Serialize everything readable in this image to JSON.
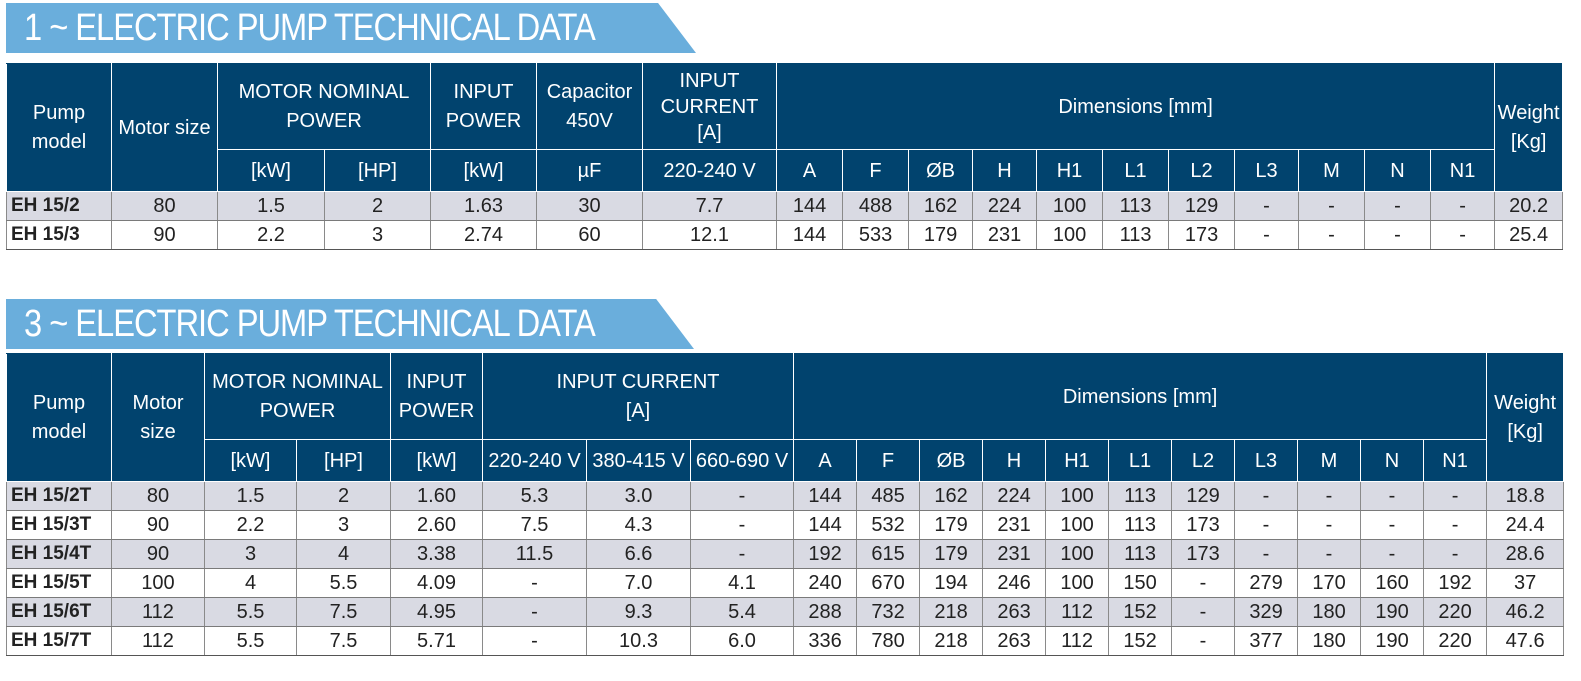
{
  "single_phase": {
    "banner": "1 ~ ELECTRIC PUMP TECHNICAL DATA",
    "headers": {
      "pump_model": "Pump\nmodel",
      "motor_size": "Motor size",
      "motor_power": "MOTOR NOMINAL\nPOWER",
      "input_power": "INPUT\nPOWER",
      "capacitor": "Capacitor\n450V",
      "input_current": "INPUT\nCURRENT\n[A]",
      "dimensions": "Dimensions [mm]",
      "weight": "Weight\n[Kg]",
      "sub": [
        "[kW]",
        "[HP]",
        "[kW]",
        "µF",
        "220-240 V",
        "A",
        "F",
        "ØB",
        "H",
        "H1",
        "L1",
        "L2",
        "L3",
        "M",
        "N",
        "N1"
      ]
    },
    "rows": [
      [
        "EH 15/2",
        "80",
        "1.5",
        "2",
        "1.63",
        "30",
        "7.7",
        "144",
        "488",
        "162",
        "224",
        "100",
        "113",
        "129",
        "-",
        "-",
        "-",
        "-",
        "20.2"
      ],
      [
        "EH 15/3",
        "90",
        "2.2",
        "3",
        "2.74",
        "60",
        "12.1",
        "144",
        "533",
        "179",
        "231",
        "100",
        "113",
        "173",
        "-",
        "-",
        "-",
        "-",
        "25.4"
      ]
    ]
  },
  "three_phase": {
    "banner": "3 ~ ELECTRIC PUMP TECHNICAL DATA",
    "headers": {
      "pump_model": "Pump\nmodel",
      "motor_size": "Motor\nsize",
      "motor_power": "MOTOR NOMINAL\nPOWER",
      "input_power": "INPUT\nPOWER",
      "input_current": "INPUT CURRENT\n[A]",
      "dimensions": "Dimensions [mm]",
      "weight": "Weight\n[Kg]",
      "sub": [
        "[kW]",
        "[HP]",
        "[kW]",
        "220-240 V",
        "380-415 V",
        "660-690 V",
        "A",
        "F",
        "ØB",
        "H",
        "H1",
        "L1",
        "L2",
        "L3",
        "M",
        "N",
        "N1"
      ]
    },
    "rows": [
      [
        "EH 15/2T",
        "80",
        "1.5",
        "2",
        "1.60",
        "5.3",
        "3.0",
        "-",
        "144",
        "485",
        "162",
        "224",
        "100",
        "113",
        "129",
        "-",
        "-",
        "-",
        "-",
        "18.8"
      ],
      [
        "EH 15/3T",
        "90",
        "2.2",
        "3",
        "2.60",
        "7.5",
        "4.3",
        "-",
        "144",
        "532",
        "179",
        "231",
        "100",
        "113",
        "173",
        "-",
        "-",
        "-",
        "-",
        "24.4"
      ],
      [
        "EH 15/4T",
        "90",
        "3",
        "4",
        "3.38",
        "11.5",
        "6.6",
        "-",
        "192",
        "615",
        "179",
        "231",
        "100",
        "113",
        "173",
        "-",
        "-",
        "-",
        "-",
        "28.6"
      ],
      [
        "EH 15/5T",
        "100",
        "4",
        "5.5",
        "4.09",
        "-",
        "7.0",
        "4.1",
        "240",
        "670",
        "194",
        "246",
        "100",
        "150",
        "-",
        "279",
        "170",
        "160",
        "192",
        "37"
      ],
      [
        "EH 15/6T",
        "112",
        "5.5",
        "7.5",
        "4.95",
        "-",
        "9.3",
        "5.4",
        "288",
        "732",
        "218",
        "263",
        "112",
        "152",
        "-",
        "329",
        "180",
        "190",
        "220",
        "46.2"
      ],
      [
        "EH 15/7T",
        "112",
        "5.5",
        "7.5",
        "5.71",
        "-",
        "10.3",
        "6.0",
        "336",
        "780",
        "218",
        "263",
        "112",
        "152",
        "-",
        "377",
        "180",
        "190",
        "220",
        "47.6"
      ]
    ]
  },
  "colors": {
    "banner": "#6aaedc",
    "header_bg": "#01436e",
    "row_shade": "#d9dae3"
  }
}
